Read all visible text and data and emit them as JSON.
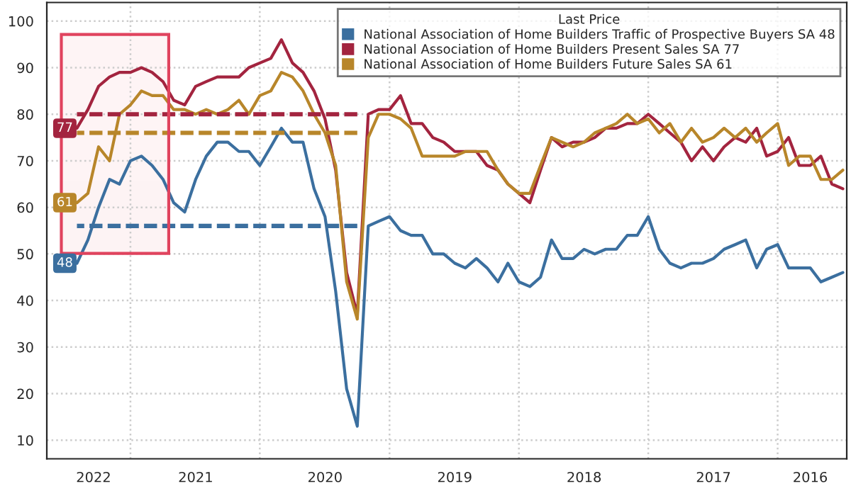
{
  "chart_data": {
    "type": "line",
    "x": [
      "2022-06",
      "2022-05",
      "2022-04",
      "2022-03",
      "2022-02",
      "2022-01",
      "2021-12",
      "2021-11",
      "2021-10",
      "2021-09",
      "2021-08",
      "2021-07",
      "2021-06",
      "2021-05",
      "2021-04",
      "2021-03",
      "2021-02",
      "2021-01",
      "2020-12",
      "2020-11",
      "2020-10",
      "2020-09",
      "2020-08",
      "2020-07",
      "2020-06",
      "2020-05",
      "2020-04",
      "2020-03",
      "2020-02",
      "2020-01",
      "2019-12",
      "2019-11",
      "2019-10",
      "2019-09",
      "2019-08",
      "2019-07",
      "2019-06",
      "2019-05",
      "2019-04",
      "2019-03",
      "2019-02",
      "2019-01",
      "2018-12",
      "2018-11",
      "2018-10",
      "2018-09",
      "2018-08",
      "2018-07",
      "2018-06",
      "2018-05",
      "2018-04",
      "2018-03",
      "2018-02",
      "2018-01",
      "2017-12",
      "2017-11",
      "2017-10",
      "2017-09",
      "2017-08",
      "2017-07",
      "2017-06",
      "2017-05",
      "2017-04",
      "2017-03",
      "2017-02",
      "2017-01",
      "2016-12",
      "2016-11",
      "2016-10",
      "2016-09",
      "2016-08",
      "2016-07"
    ],
    "series": [
      {
        "name": "National Association of Home Builders Traffic of Prospective Buyers SA 48",
        "color": "#3b6f9f",
        "values": [
          48,
          53,
          60,
          66,
          65,
          70,
          71,
          69,
          66,
          61,
          59,
          66,
          71,
          74,
          74,
          72,
          72,
          69,
          73,
          77,
          74,
          74,
          64,
          58,
          42,
          21,
          13,
          56,
          57,
          58,
          55,
          54,
          54,
          50,
          50,
          48,
          47,
          49,
          47,
          44,
          48,
          44,
          43,
          45,
          53,
          49,
          49,
          51,
          50,
          51,
          51,
          54,
          54,
          58,
          51,
          48,
          47,
          48,
          48,
          49,
          51,
          52,
          53,
          47,
          51,
          52,
          47,
          47,
          47,
          44,
          45,
          46
        ]
      },
      {
        "name": "National Association of Home Builders Present Sales SA 77",
        "color": "#a3243f",
        "values": [
          77,
          81,
          86,
          88,
          89,
          89,
          90,
          89,
          87,
          83,
          82,
          86,
          87,
          88,
          88,
          88,
          90,
          91,
          92,
          96,
          91,
          89,
          85,
          79,
          68,
          46,
          37,
          80,
          81,
          81,
          84,
          78,
          78,
          75,
          74,
          72,
          72,
          72,
          69,
          68,
          65,
          63,
          61,
          68,
          75,
          73,
          74,
          74,
          75,
          77,
          77,
          78,
          78,
          80,
          78,
          76,
          74,
          70,
          73,
          70,
          73,
          75,
          74,
          77,
          71,
          72,
          75,
          69,
          69,
          71,
          65,
          64
        ]
      },
      {
        "name": "National Association of Home Builders Future Sales SA 61",
        "color": "#b8862a",
        "values": [
          61,
          63,
          73,
          70,
          80,
          82,
          85,
          84,
          84,
          81,
          81,
          80,
          81,
          80,
          81,
          83,
          80,
          84,
          85,
          89,
          88,
          85,
          80,
          76,
          69,
          44,
          36,
          75,
          80,
          80,
          79,
          77,
          71,
          71,
          71,
          71,
          72,
          72,
          72,
          68,
          65,
          63,
          63,
          69,
          75,
          74,
          73,
          74,
          76,
          77,
          78,
          80,
          78,
          79,
          76,
          78,
          74,
          77,
          74,
          75,
          77,
          75,
          77,
          74,
          76,
          78,
          69,
          71,
          71,
          66,
          66,
          68
        ]
      },
      {
        "color": "#a3243f",
        "line_style": "dashed",
        "x": [
          "2020-04",
          "2022-06"
        ],
        "values": [
          80,
          80
        ]
      },
      {
        "color": "#b8862a",
        "line_style": "dashed",
        "x": [
          "2020-04",
          "2022-06"
        ],
        "values": [
          76,
          76
        ]
      },
      {
        "color": "#3b6f9f",
        "line_style": "dashed",
        "x": [
          "2020-04",
          "2022-06"
        ],
        "values": [
          56,
          56
        ]
      }
    ],
    "bands": [
      {
        "axis": "x",
        "from": "2021-09-15",
        "to": "2022-07-15",
        "color": "#e0435e"
      }
    ],
    "annotations": [
      {
        "text": "48",
        "x": "2022-06",
        "y": 48
      },
      {
        "text": "77",
        "x": "2022-06",
        "y": 77
      },
      {
        "text": "61",
        "x": "2022-06",
        "y": 61
      }
    ],
    "legend_title": "Last Price",
    "legend": "top right",
    "xlim": [
      "2022-08-25",
      "2016-06-20"
    ],
    "xticks": [
      {
        "value": "2022-01-01",
        "label": null
      },
      {
        "value": "2021-01-01",
        "label": null
      },
      {
        "value": "2020-01-01",
        "label": null
      },
      {
        "value": "2019-01-01",
        "label": null
      },
      {
        "value": "2018-01-01",
        "label": null
      },
      {
        "value": "2017-01-01",
        "label": null
      },
      {
        "value": "2022-04-15",
        "label": "2022"
      },
      {
        "value": "2021-07-01",
        "label": "2021"
      },
      {
        "value": "2020-07-01",
        "label": "2020"
      },
      {
        "value": "2019-07-01",
        "label": "2019"
      },
      {
        "value": "2018-07-01",
        "label": "2018"
      },
      {
        "value": "2017-07-01",
        "label": "2017"
      },
      {
        "value": "2016-10-01",
        "label": "2016"
      }
    ],
    "ylim": [
      6,
      104
    ],
    "yticks": [
      10,
      20,
      30,
      40,
      50,
      60,
      70,
      80,
      90,
      100
    ],
    "grid": true
  }
}
